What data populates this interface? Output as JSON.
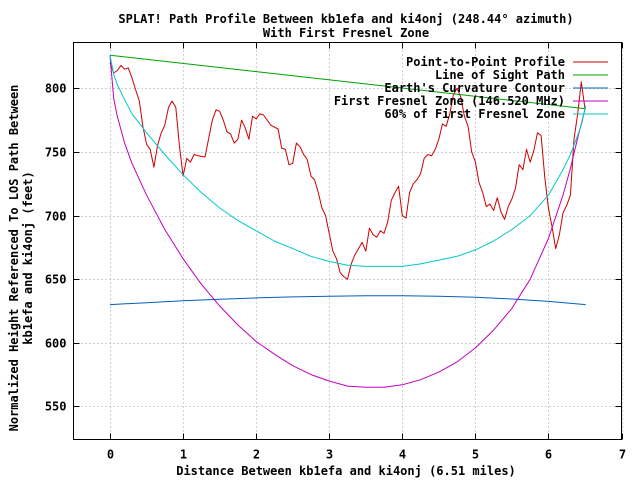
{
  "chart_data": {
    "type": "line",
    "title_line1": "SPLAT! Path Profile Between kb1efa and ki4onj (248.44° azimuth)",
    "title_line2": "With First Fresnel Zone",
    "xlabel": "Distance Between kb1efa and ki4onj (6.51 miles)",
    "ylabel_line1": "Normalized Height Referenced To LOS Path Between",
    "ylabel_line2": "kb1efa and ki4onj (feet)",
    "xlim": [
      -0.5,
      7
    ],
    "ylim": [
      524,
      836
    ],
    "x_ticks": [
      0,
      1,
      2,
      3,
      4,
      5,
      6,
      7
    ],
    "y_ticks": [
      550,
      600,
      650,
      700,
      750,
      800
    ],
    "grid": true,
    "legend_position": "top-right",
    "series": [
      {
        "name": "Point-to-Point Profile",
        "color": "#cc0000",
        "x": [
          0.0,
          0.05,
          0.1,
          0.15,
          0.2,
          0.25,
          0.3,
          0.35,
          0.4,
          0.45,
          0.5,
          0.55,
          0.6,
          0.65,
          0.7,
          0.75,
          0.8,
          0.85,
          0.9,
          0.95,
          1.0,
          1.05,
          1.1,
          1.15,
          1.2,
          1.3,
          1.4,
          1.45,
          1.5,
          1.55,
          1.6,
          1.65,
          1.7,
          1.75,
          1.8,
          1.85,
          1.9,
          1.95,
          2.0,
          2.05,
          2.1,
          2.2,
          2.3,
          2.35,
          2.4,
          2.45,
          2.5,
          2.55,
          2.6,
          2.65,
          2.7,
          2.75,
          2.8,
          2.85,
          2.9,
          2.95,
          3.0,
          3.05,
          3.1,
          3.15,
          3.2,
          3.25,
          3.3,
          3.35,
          3.4,
          3.45,
          3.5,
          3.55,
          3.6,
          3.65,
          3.7,
          3.75,
          3.8,
          3.85,
          3.9,
          3.95,
          4.0,
          4.05,
          4.1,
          4.15,
          4.2,
          4.25,
          4.3,
          4.35,
          4.4,
          4.45,
          4.5,
          4.55,
          4.6,
          4.65,
          4.7,
          4.75,
          4.8,
          4.85,
          4.9,
          4.95,
          5.0,
          5.05,
          5.1,
          5.15,
          5.2,
          5.25,
          5.3,
          5.35,
          5.4,
          5.45,
          5.5,
          5.55,
          5.6,
          5.65,
          5.7,
          5.75,
          5.8,
          5.85,
          5.9,
          5.95,
          6.0,
          6.05,
          6.1,
          6.15,
          6.2,
          6.25,
          6.3,
          6.35,
          6.4,
          6.45,
          6.5
        ],
        "y": [
          820,
          812,
          814,
          818,
          815,
          816,
          808,
          799,
          790,
          770,
          756,
          752,
          738,
          755,
          765,
          771,
          785,
          790,
          785,
          755,
          731,
          745,
          742,
          748,
          747,
          746,
          775,
          783,
          782,
          775,
          766,
          764,
          757,
          760,
          775,
          769,
          760,
          778,
          776,
          780,
          779,
          771,
          768,
          753,
          752,
          740,
          741,
          757,
          754,
          748,
          744,
          731,
          728,
          718,
          706,
          700,
          686,
          672,
          666,
          655,
          652,
          650,
          662,
          669,
          674,
          679,
          672,
          690,
          685,
          683,
          688,
          686,
          695,
          712,
          718,
          723,
          700,
          698,
          718,
          725,
          728,
          733,
          745,
          748,
          747,
          752,
          760,
          772,
          770,
          780,
          795,
          800,
          793,
          778,
          770,
          750,
          742,
          726,
          718,
          707,
          709,
          704,
          714,
          703,
          697,
          707,
          713,
          722,
          740,
          736,
          752,
          742,
          751,
          765,
          763,
          730,
          706,
          691,
          674,
          685,
          702,
          708,
          716,
          760,
          780,
          805,
          784
        ]
      },
      {
        "name": "Line of Sight Path",
        "color": "#00a000",
        "x": [
          0,
          6.51
        ],
        "y": [
          826,
          784
        ]
      },
      {
        "name": "Earth's Curvature Contour",
        "color": "#0060c0",
        "x": [
          0,
          0.5,
          1,
          1.5,
          2,
          2.5,
          3,
          3.5,
          4,
          4.5,
          5,
          5.5,
          6,
          6.51
        ],
        "y": [
          630,
          631.5,
          633,
          634.3,
          635.3,
          636.1,
          636.6,
          636.9,
          636.9,
          636.6,
          635.8,
          634.4,
          632.5,
          630
        ]
      },
      {
        "name": "First Fresnel Zone (146.520 MHz)",
        "color": "#c000c0",
        "x": [
          0,
          0.05,
          0.1,
          0.2,
          0.3,
          0.5,
          0.75,
          1,
          1.25,
          1.5,
          1.75,
          2,
          2.25,
          2.5,
          2.75,
          3,
          3.25,
          3.5,
          3.75,
          4,
          4.25,
          4.5,
          4.75,
          5,
          5.25,
          5.5,
          5.75,
          6,
          6.2,
          6.3,
          6.4,
          6.45,
          6.51
        ],
        "y": [
          826,
          792,
          778,
          757,
          741,
          716,
          689,
          666,
          646,
          629,
          614,
          601,
          591,
          582,
          575,
          570,
          566,
          565,
          565,
          567,
          571,
          577,
          585,
          596,
          610,
          627,
          650,
          682,
          716,
          737,
          761,
          772,
          786
        ]
      },
      {
        "name": "60% of First Fresnel Zone",
        "color": "#00c8c8",
        "x": [
          0,
          0.05,
          0.1,
          0.2,
          0.3,
          0.5,
          0.75,
          1,
          1.25,
          1.5,
          1.75,
          2,
          2.25,
          2.5,
          2.75,
          3,
          3.25,
          3.5,
          3.75,
          4,
          4.25,
          4.5,
          4.75,
          5,
          5.25,
          5.5,
          5.75,
          6,
          6.2,
          6.3,
          6.4,
          6.45,
          6.51
        ],
        "y": [
          826,
          811,
          803,
          791,
          780,
          765,
          748,
          732,
          718,
          706,
          696,
          688,
          680,
          674,
          668,
          664,
          661,
          660,
          660,
          660,
          662,
          665,
          668,
          673,
          680,
          689,
          700,
          716,
          736,
          748,
          763,
          771,
          786
        ]
      }
    ]
  }
}
